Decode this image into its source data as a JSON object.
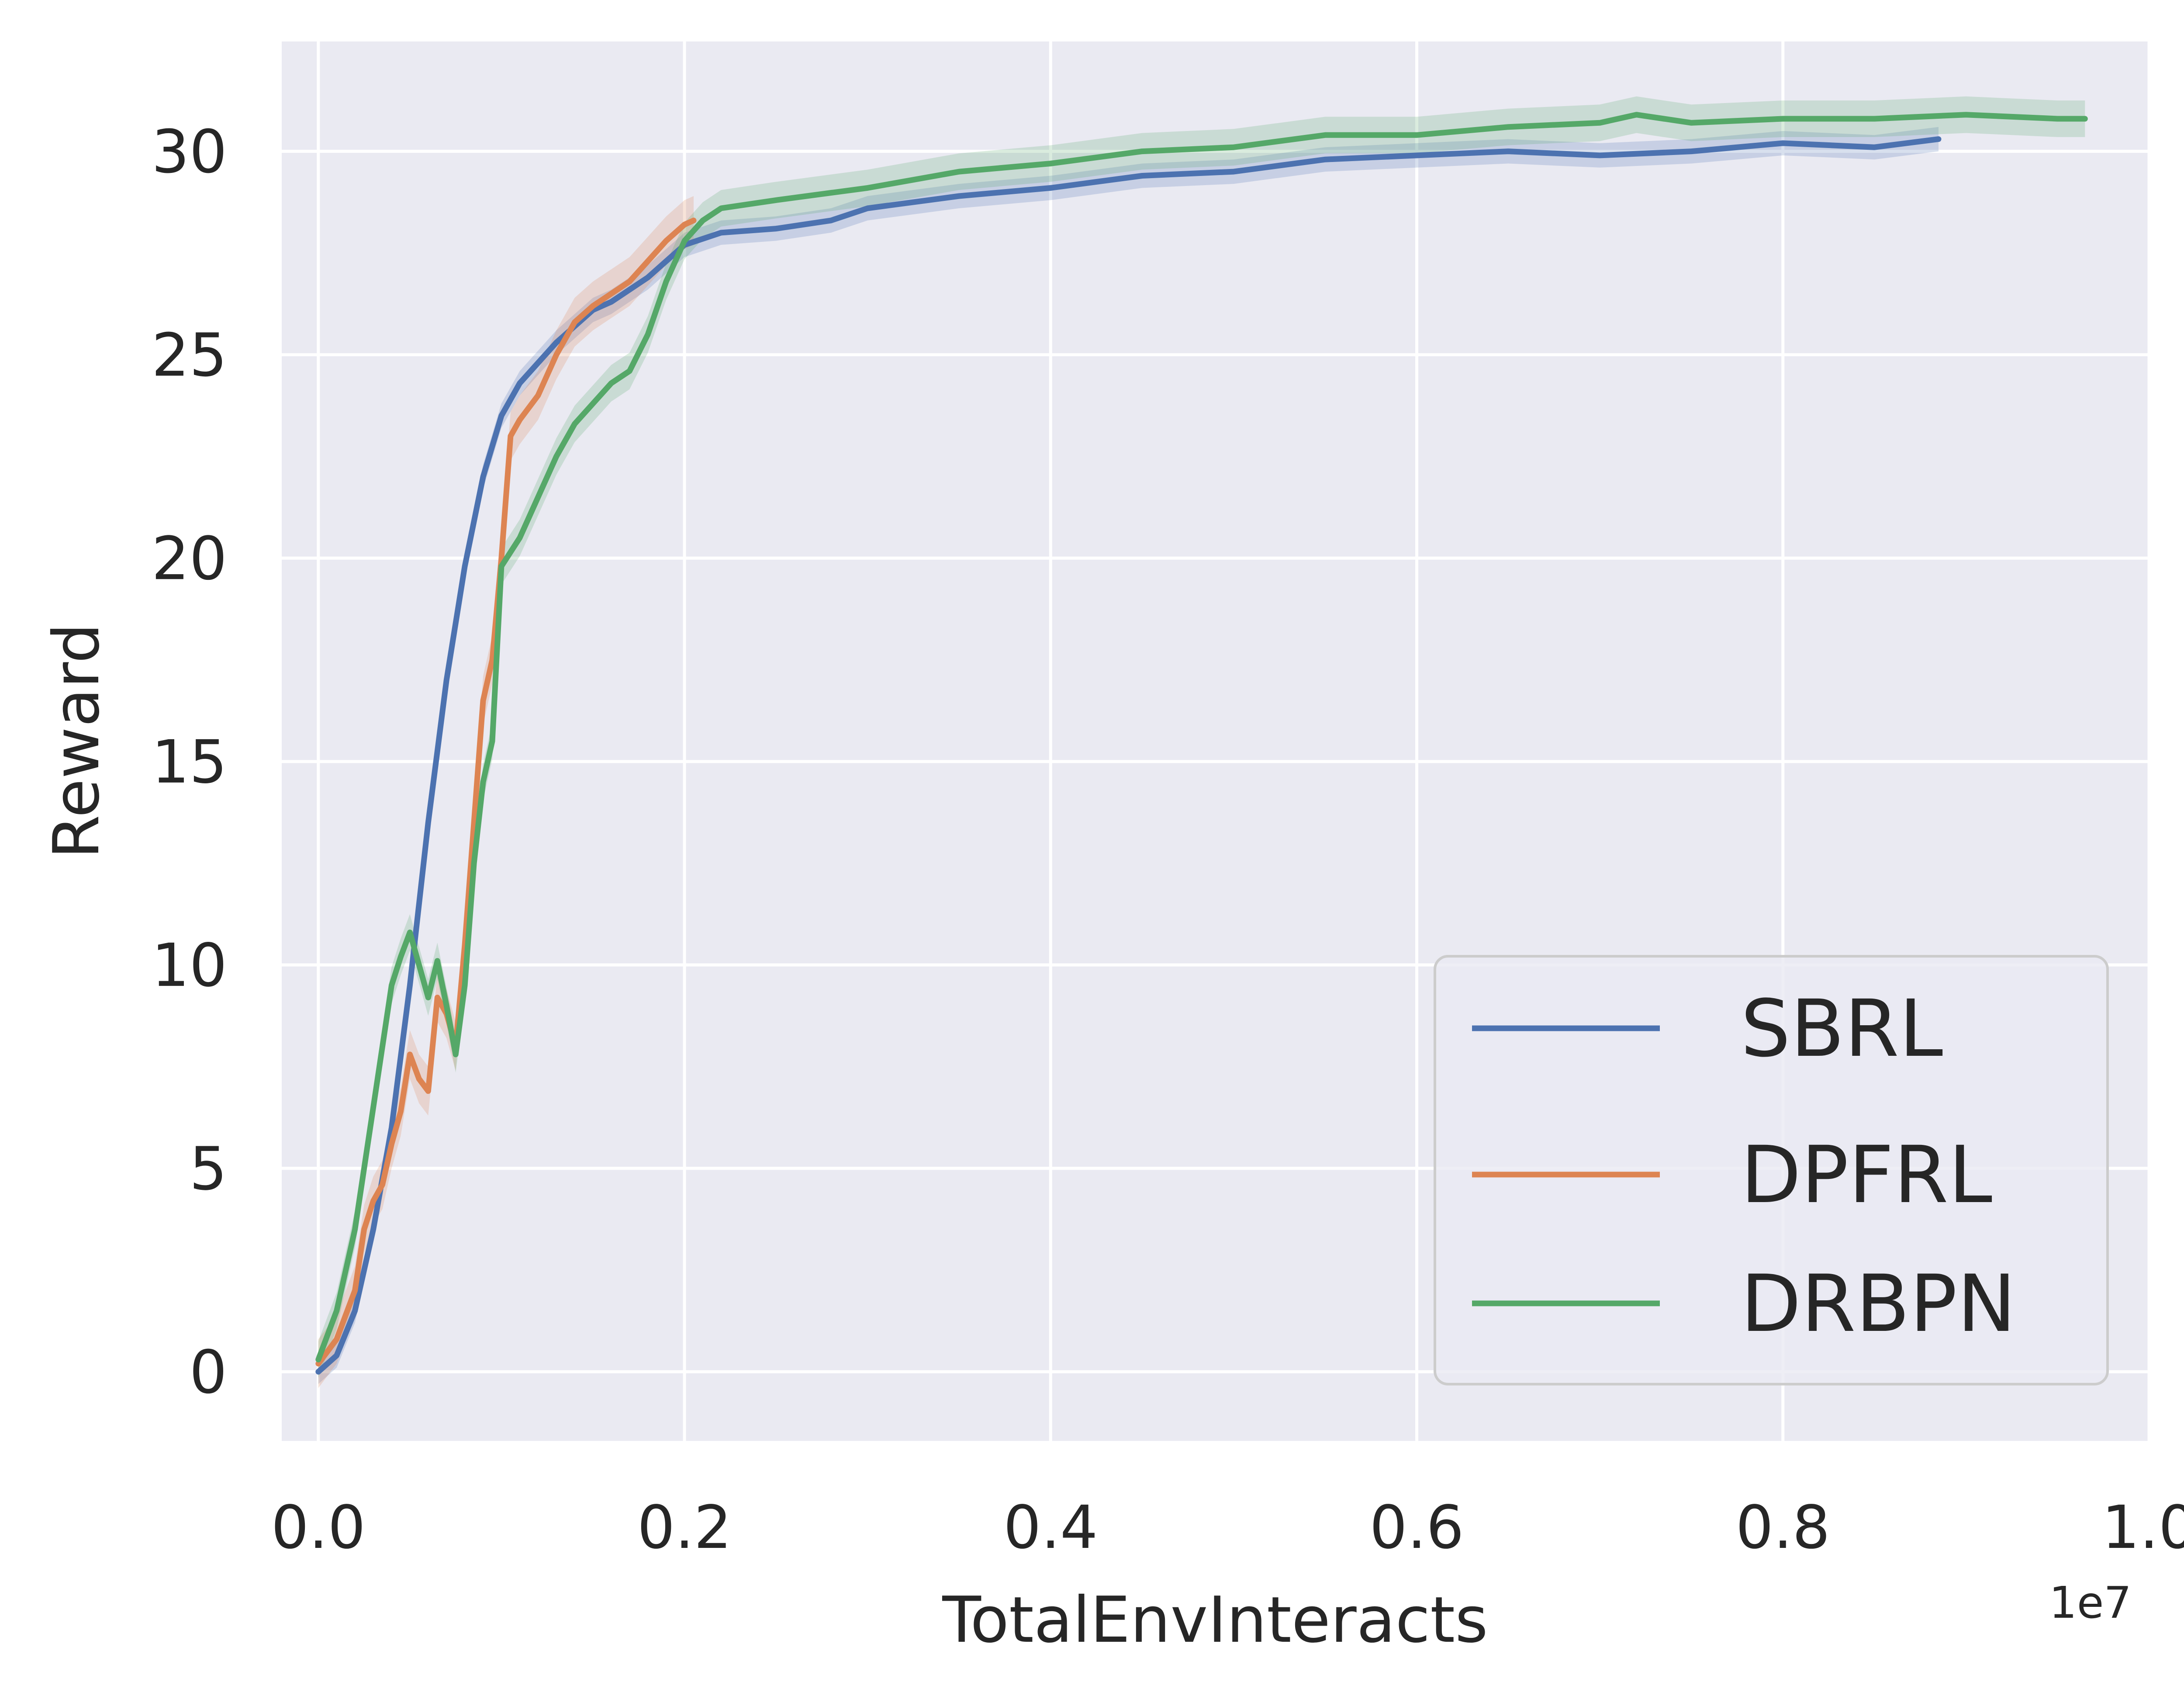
{
  "chart_data": {
    "type": "line",
    "title": "",
    "xlabel": "TotalEnvInteracts",
    "ylabel": "Reward",
    "x_offset_label": "1e7",
    "xlim": [
      -0.02,
      1.0
    ],
    "ylim": [
      -1.7,
      32.7
    ],
    "x_ticks": [
      0.0,
      0.2,
      0.4,
      0.6,
      0.8,
      1.0
    ],
    "x_tick_labels": [
      "0.0",
      "0.2",
      "0.4",
      "0.6",
      "0.8",
      "1.0"
    ],
    "y_ticks": [
      0,
      5,
      10,
      15,
      20,
      25,
      30
    ],
    "y_tick_labels": [
      "0",
      "5",
      "10",
      "15",
      "20",
      "25",
      "30"
    ],
    "grid": true,
    "legend_position": "lower-right",
    "x_units": "x 1e7 interactions",
    "series": [
      {
        "name": "SBRL",
        "color": "#4c72b0",
        "band": 0.3,
        "points": [
          [
            0.0,
            0.0
          ],
          [
            0.01,
            0.4
          ],
          [
            0.02,
            1.5
          ],
          [
            0.03,
            3.5
          ],
          [
            0.04,
            6.0
          ],
          [
            0.05,
            9.5
          ],
          [
            0.06,
            13.5
          ],
          [
            0.07,
            17.0
          ],
          [
            0.08,
            19.8
          ],
          [
            0.09,
            22.0
          ],
          [
            0.1,
            23.5
          ],
          [
            0.11,
            24.3
          ],
          [
            0.12,
            24.8
          ],
          [
            0.13,
            25.3
          ],
          [
            0.14,
            25.7
          ],
          [
            0.15,
            26.1
          ],
          [
            0.16,
            26.3
          ],
          [
            0.17,
            26.6
          ],
          [
            0.18,
            26.9
          ],
          [
            0.19,
            27.3
          ],
          [
            0.2,
            27.7
          ],
          [
            0.22,
            28.0
          ],
          [
            0.25,
            28.1
          ],
          [
            0.28,
            28.3
          ],
          [
            0.3,
            28.6
          ],
          [
            0.35,
            28.9
          ],
          [
            0.4,
            29.1
          ],
          [
            0.45,
            29.4
          ],
          [
            0.5,
            29.5
          ],
          [
            0.55,
            29.8
          ],
          [
            0.6,
            29.9
          ],
          [
            0.65,
            30.0
          ],
          [
            0.7,
            29.9
          ],
          [
            0.75,
            30.0
          ],
          [
            0.8,
            30.2
          ],
          [
            0.85,
            30.1
          ],
          [
            0.885,
            30.3
          ]
        ]
      },
      {
        "name": "DPFRL",
        "color": "#dd8452",
        "band": 0.6,
        "points": [
          [
            0.0,
            0.2
          ],
          [
            0.01,
            0.8
          ],
          [
            0.02,
            2.0
          ],
          [
            0.025,
            3.5
          ],
          [
            0.03,
            4.2
          ],
          [
            0.035,
            4.6
          ],
          [
            0.04,
            5.6
          ],
          [
            0.045,
            6.4
          ],
          [
            0.05,
            7.8
          ],
          [
            0.055,
            7.2
          ],
          [
            0.06,
            6.9
          ],
          [
            0.065,
            9.2
          ],
          [
            0.07,
            8.8
          ],
          [
            0.075,
            8.0
          ],
          [
            0.08,
            10.5
          ],
          [
            0.085,
            13.5
          ],
          [
            0.09,
            16.5
          ],
          [
            0.095,
            17.5
          ],
          [
            0.1,
            20.0
          ],
          [
            0.105,
            23.0
          ],
          [
            0.11,
            23.4
          ],
          [
            0.12,
            24.0
          ],
          [
            0.13,
            25.0
          ],
          [
            0.14,
            25.8
          ],
          [
            0.15,
            26.2
          ],
          [
            0.16,
            26.5
          ],
          [
            0.17,
            26.8
          ],
          [
            0.18,
            27.3
          ],
          [
            0.19,
            27.8
          ],
          [
            0.2,
            28.2
          ],
          [
            0.205,
            28.3
          ]
        ]
      },
      {
        "name": "DRBPN",
        "color": "#55a868",
        "band": 0.45,
        "points": [
          [
            0.0,
            0.3
          ],
          [
            0.01,
            1.5
          ],
          [
            0.02,
            3.5
          ],
          [
            0.03,
            6.5
          ],
          [
            0.04,
            9.5
          ],
          [
            0.045,
            10.2
          ],
          [
            0.05,
            10.8
          ],
          [
            0.055,
            10.0
          ],
          [
            0.06,
            9.2
          ],
          [
            0.065,
            10.1
          ],
          [
            0.07,
            9.0
          ],
          [
            0.075,
            7.8
          ],
          [
            0.08,
            9.5
          ],
          [
            0.085,
            12.5
          ],
          [
            0.09,
            14.5
          ],
          [
            0.095,
            15.5
          ],
          [
            0.1,
            19.8
          ],
          [
            0.11,
            20.5
          ],
          [
            0.12,
            21.5
          ],
          [
            0.13,
            22.5
          ],
          [
            0.14,
            23.3
          ],
          [
            0.15,
            23.8
          ],
          [
            0.16,
            24.3
          ],
          [
            0.17,
            24.6
          ],
          [
            0.18,
            25.5
          ],
          [
            0.19,
            26.8
          ],
          [
            0.2,
            27.8
          ],
          [
            0.21,
            28.3
          ],
          [
            0.22,
            28.6
          ],
          [
            0.25,
            28.8
          ],
          [
            0.3,
            29.1
          ],
          [
            0.35,
            29.5
          ],
          [
            0.4,
            29.7
          ],
          [
            0.45,
            30.0
          ],
          [
            0.5,
            30.1
          ],
          [
            0.55,
            30.4
          ],
          [
            0.6,
            30.4
          ],
          [
            0.65,
            30.6
          ],
          [
            0.7,
            30.7
          ],
          [
            0.72,
            30.9
          ],
          [
            0.75,
            30.7
          ],
          [
            0.8,
            30.8
          ],
          [
            0.85,
            30.8
          ],
          [
            0.9,
            30.9
          ],
          [
            0.95,
            30.8
          ],
          [
            0.965,
            30.8
          ]
        ]
      }
    ]
  }
}
